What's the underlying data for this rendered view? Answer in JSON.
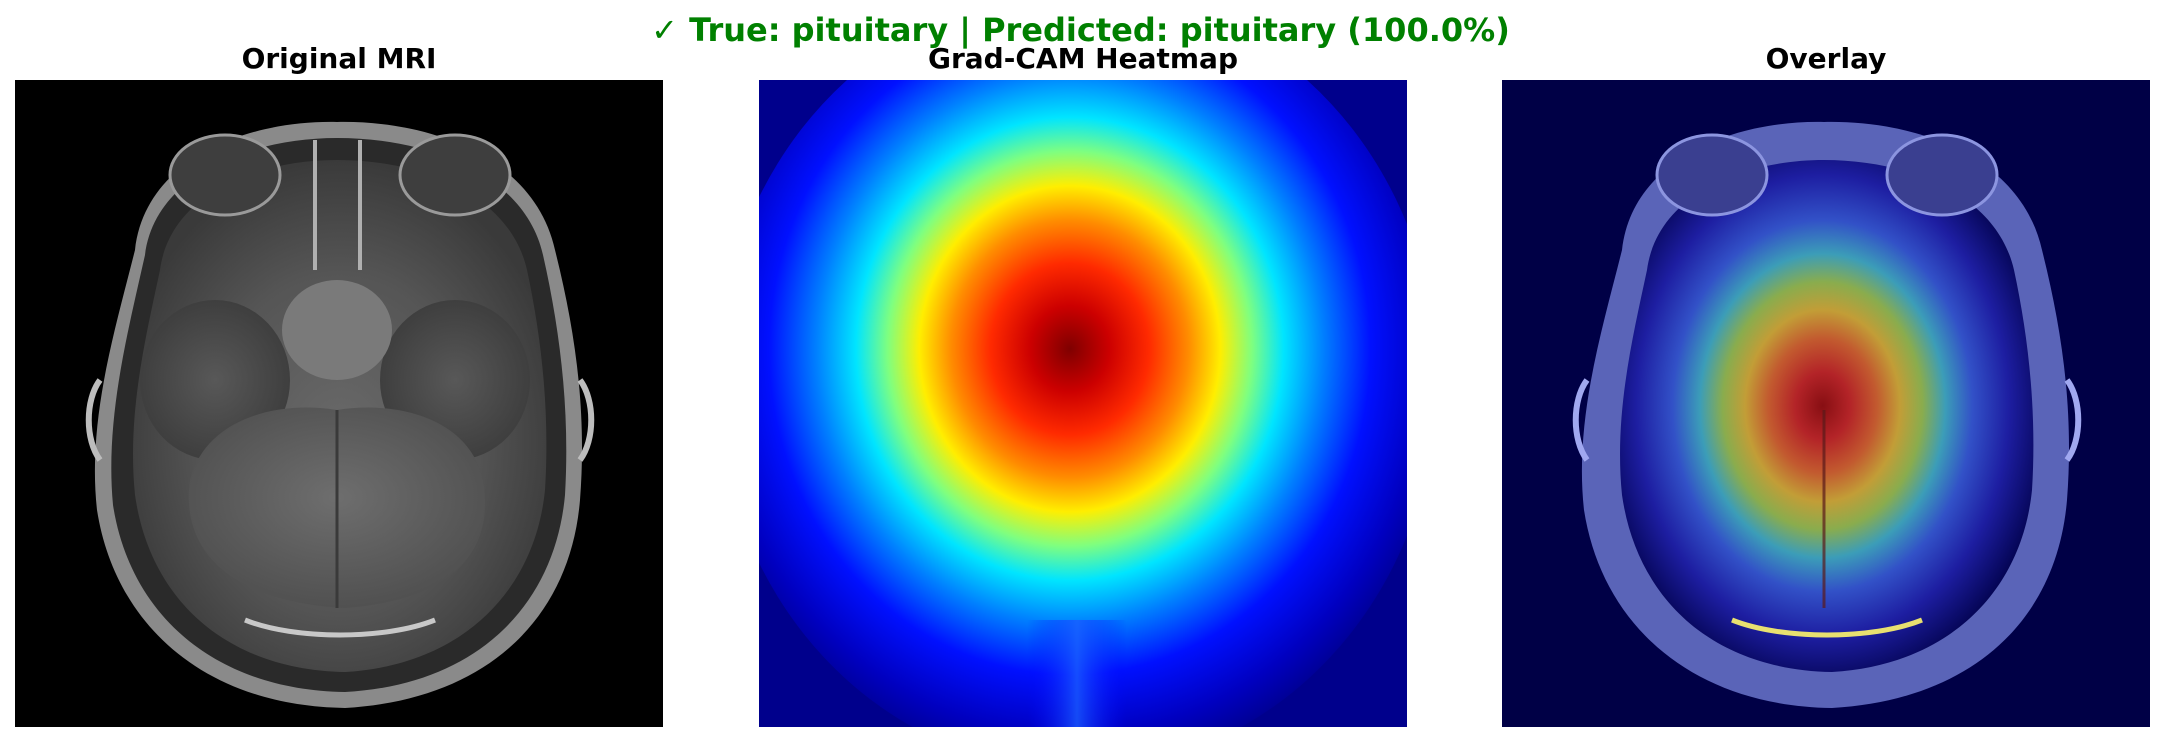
{
  "figure": {
    "suptitle": "✓ True: pituitary | Predicted: pituitary (100.0%)",
    "suptitle_color": "#008000",
    "true_label": "pituitary",
    "predicted_label": "pituitary",
    "confidence_percent": 100.0,
    "correct": true
  },
  "panels": [
    {
      "title": "Original MRI",
      "content": "axial brain MRI, grayscale"
    },
    {
      "title": "Grad-CAM Heatmap",
      "content": "jet colormap heatmap, hotspot center"
    },
    {
      "title": "Overlay",
      "content": "heatmap blended over MRI"
    }
  ],
  "colormap": "jet"
}
